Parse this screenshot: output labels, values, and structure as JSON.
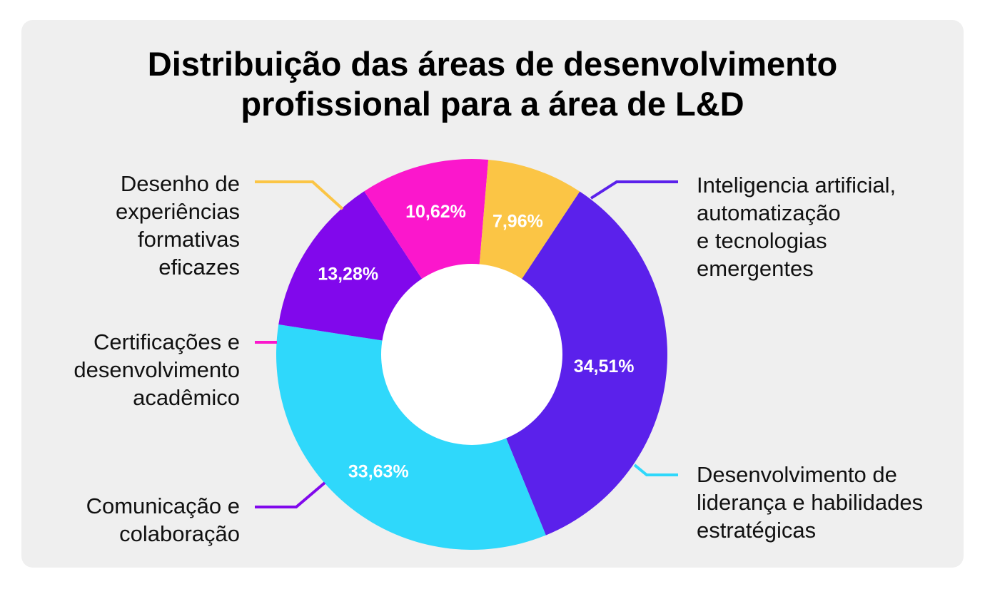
{
  "chart_data": {
    "type": "pie",
    "donut": true,
    "title_lines": [
      "Distribuição das áreas de desenvolvimento",
      "profissional para a área de L&D"
    ],
    "slices": [
      {
        "name_lines": [
          "Inteligencia artificial,",
          "automatização",
          "e tecnologias",
          "emergentes"
        ],
        "value": 34.51,
        "value_label": "34,51%",
        "color": "#5b21eb"
      },
      {
        "name_lines": [
          "Desenvolvimento de",
          "liderança e habilidades",
          "estratégicas"
        ],
        "value": 33.63,
        "value_label": "33,63%",
        "color": "#2fd8fb"
      },
      {
        "name_lines": [
          "Comunicação e",
          "colaboração"
        ],
        "value": 13.28,
        "value_label": "13,28%",
        "color": "#8108ec"
      },
      {
        "name_lines": [
          "Certificações e",
          "desenvolvimento",
          "acadêmico"
        ],
        "value": 10.62,
        "value_label": "10,62%",
        "color": "#fb17cc"
      },
      {
        "name_lines": [
          "Desenho de",
          "experiências",
          "formativas",
          "eficazes"
        ],
        "value": 7.96,
        "value_label": "7,96%",
        "color": "#fbc545"
      }
    ],
    "legend": "callouts"
  }
}
